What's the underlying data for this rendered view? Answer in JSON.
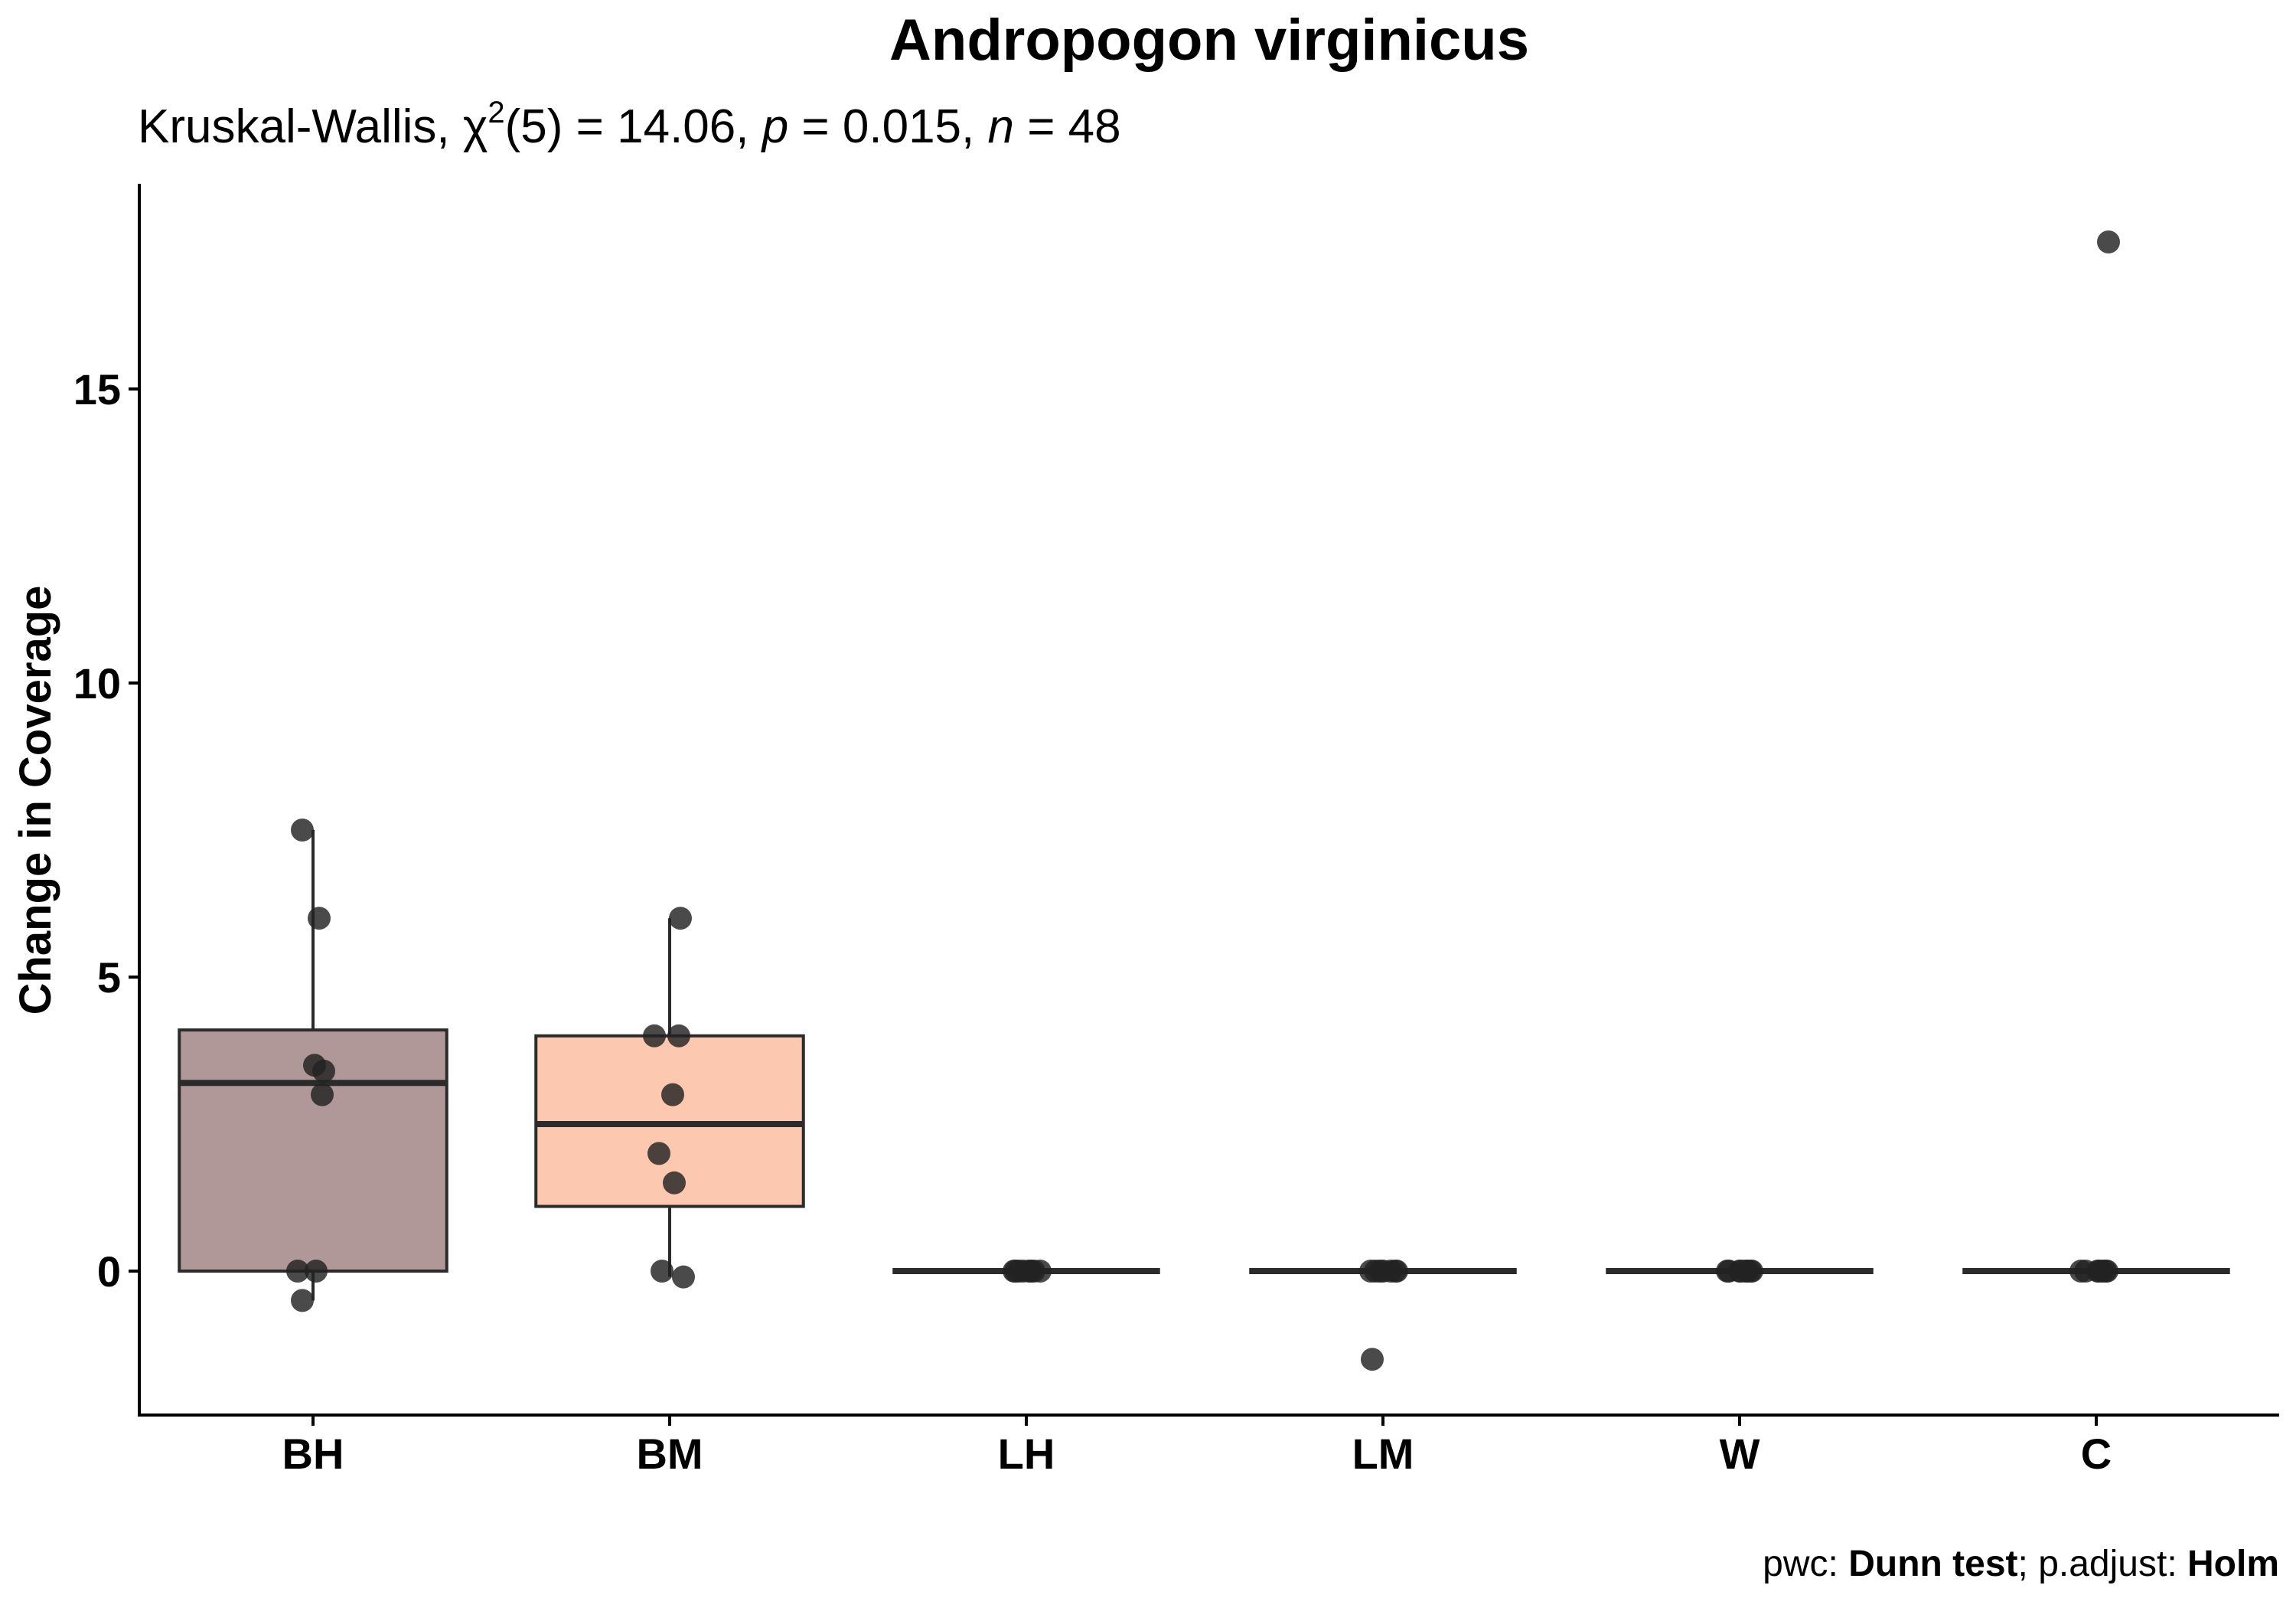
{
  "chart_data": {
    "type": "box",
    "title": "Andropogon virginicus",
    "subtitle": {
      "test_name": "Kruskal-Wallis",
      "statistic_symbol": "χ",
      "statistic_exponent": "2",
      "df": "(5)",
      "statistic_value": "14.06",
      "p_symbol": "p",
      "p_value": "0.015",
      "n_symbol": "n",
      "n_value": "48"
    },
    "ylabel": "Change in Coverage",
    "xlabel": "",
    "ylim": [
      -2.4,
      18.5
    ],
    "yticks": [
      0,
      5,
      10,
      15
    ],
    "grid": false,
    "legend": "none",
    "caption": {
      "pwc_label": "pwc: ",
      "pwc_value": "Dunn test",
      "adjust_label": "; p.adjust: ",
      "adjust_value": "Holm"
    },
    "colors": {
      "box_BH": "#b09898",
      "box_BM": "#fcc8b0",
      "outline": "#2b2b2b",
      "point": "#222222"
    },
    "groups": [
      {
        "label": "BH",
        "fill": "#b09898",
        "q1": 0,
        "median": 3.2,
        "q3": 4.1,
        "whisker_low": -0.5,
        "whisker_high": 7.5,
        "points": [
          7.5,
          6,
          3.5,
          3.4,
          3.0,
          0,
          0,
          -0.5
        ]
      },
      {
        "label": "BM",
        "fill": "#fcc8b0",
        "q1": 1.1,
        "median": 2.5,
        "q3": 4.0,
        "whisker_low": -0.1,
        "whisker_high": 6,
        "points": [
          6,
          4,
          4,
          3,
          2,
          1.5,
          0,
          -0.1
        ]
      },
      {
        "label": "LH",
        "fill": "#ffffff",
        "q1": 0,
        "median": 0,
        "q3": 0,
        "whisker_low": 0,
        "whisker_high": 0,
        "points": [
          0,
          0,
          0,
          0,
          0,
          0,
          0,
          0
        ]
      },
      {
        "label": "LM",
        "fill": "#ffffff",
        "q1": 0,
        "median": 0,
        "q3": 0,
        "whisker_low": 0,
        "whisker_high": 0,
        "points": [
          0,
          0,
          0,
          0,
          0,
          0,
          0,
          -1.5
        ]
      },
      {
        "label": "W",
        "fill": "#ffffff",
        "q1": 0,
        "median": 0,
        "q3": 0,
        "whisker_low": 0,
        "whisker_high": 0,
        "points": [
          0,
          0,
          0,
          0,
          0,
          0,
          0,
          0
        ]
      },
      {
        "label": "C",
        "fill": "#ffffff",
        "q1": 0,
        "median": 0,
        "q3": 0,
        "whisker_low": 0,
        "whisker_high": 0,
        "points": [
          17.5,
          0,
          0,
          0,
          0,
          0,
          0,
          0
        ]
      }
    ]
  }
}
